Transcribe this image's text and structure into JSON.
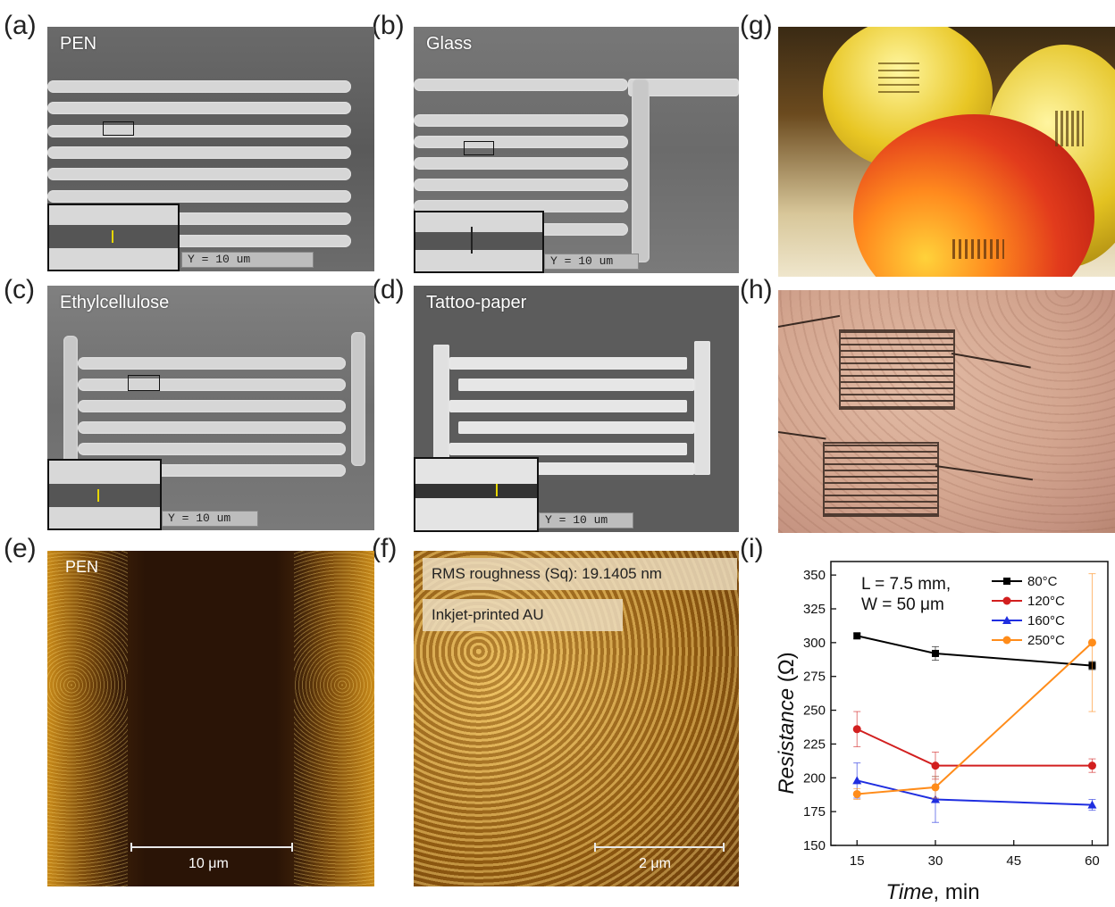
{
  "panel_labels": {
    "a": "(a)",
    "b": "(b)",
    "c": "(c)",
    "d": "(d)",
    "e": "(e)",
    "f": "(f)",
    "g": "(g)",
    "h": "(h)",
    "i": "(i)"
  },
  "micrographs": {
    "a": {
      "substrate": "PEN",
      "scale": "Y  = 10 um"
    },
    "b": {
      "substrate": "Glass",
      "scale": "Y  = 10 um"
    },
    "c": {
      "substrate": "Ethylcellulose",
      "scale": "Y  = 10 um"
    },
    "d": {
      "substrate": "Tattoo-paper",
      "scale": "Y  = 10 um"
    }
  },
  "afm": {
    "e": {
      "label": "PEN",
      "scalebar": "10 μm"
    },
    "f": {
      "roughness": "RMS roughness (Sq): 19.1405 nm",
      "material": "Inkjet-printed AU",
      "scalebar": "2 μm"
    }
  },
  "colors": {
    "c80": "#000000",
    "c120": "#d21f1f",
    "c160": "#1f2ee0",
    "c250": "#ff8c1a"
  },
  "chart_data": {
    "type": "line",
    "x": [
      15,
      30,
      60
    ],
    "xlabel_italic": "Time",
    "xlabel_unit": ", min",
    "ylabel_italic": "Resistance",
    "ylabel_unit": " (Ω)",
    "xlim": [
      10,
      63
    ],
    "ylim": [
      150,
      360
    ],
    "xticks": [
      15,
      30,
      45,
      60
    ],
    "yticks": [
      150,
      175,
      200,
      225,
      250,
      275,
      300,
      325,
      350
    ],
    "annotation": [
      "L = 7.5 mm,",
      "W = 50 μm"
    ],
    "legend_position": "top-right",
    "series": [
      {
        "name": "80°C",
        "marker": "square",
        "values": [
          305,
          292,
          283
        ],
        "errors": [
          2,
          5,
          3
        ]
      },
      {
        "name": "120°C",
        "marker": "circle",
        "values": [
          236,
          209,
          209
        ],
        "errors": [
          13,
          10,
          5
        ]
      },
      {
        "name": "160°C",
        "marker": "triangle",
        "values": [
          198,
          184,
          180
        ],
        "errors": [
          13,
          17,
          4
        ]
      },
      {
        "name": "250°C",
        "marker": "circle",
        "values": [
          188,
          193,
          300
        ],
        "errors": [
          4,
          8,
          51
        ]
      }
    ]
  }
}
